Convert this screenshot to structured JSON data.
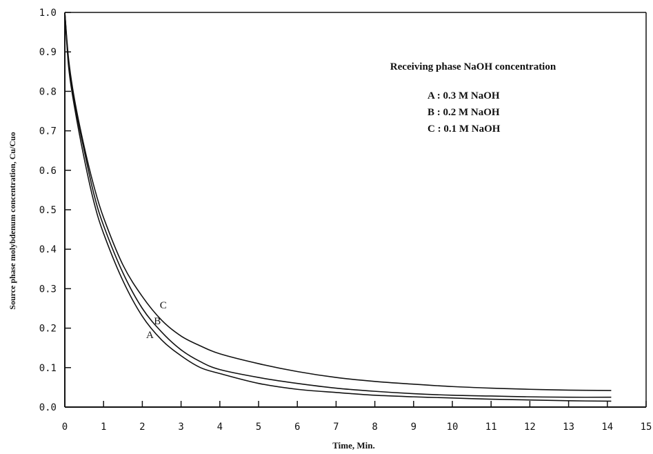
{
  "chart_data": {
    "type": "line",
    "title": "",
    "xlabel": "Time, Min.",
    "ylabel": "Source phase molybdenum concentration,  Cu/Cuo",
    "xlim": [
      0,
      15
    ],
    "ylim": [
      0.0,
      1.0
    ],
    "x_ticks": [
      0,
      1,
      2,
      3,
      4,
      5,
      6,
      7,
      8,
      9,
      10,
      11,
      12,
      13,
      14,
      15
    ],
    "y_ticks": [
      "0.0",
      "0.1",
      "0.2",
      "0.3",
      "0.4",
      "0.5",
      "0.6",
      "0.7",
      "0.8",
      "0.9",
      "1.0"
    ],
    "grid": false,
    "legend": {
      "title": "Receiving phase NaOH concentration",
      "entries": [
        "A : 0.3 M  NaOH",
        "B : 0.2 M NaOH",
        "C : 0.1 M  NaOH"
      ],
      "placement": "top-right"
    },
    "series": [
      {
        "name": "A",
        "label": "A",
        "label_at": [
          2.1,
          0.175
        ],
        "x": [
          0,
          0.1,
          0.25,
          0.5,
          0.75,
          1,
          1.5,
          2,
          2.5,
          3,
          3.5,
          4,
          5,
          6,
          7,
          8,
          9,
          10,
          11,
          12,
          13,
          14.1
        ],
        "y": [
          1.0,
          0.86,
          0.76,
          0.63,
          0.52,
          0.44,
          0.32,
          0.23,
          0.17,
          0.13,
          0.1,
          0.085,
          0.06,
          0.045,
          0.037,
          0.03,
          0.026,
          0.023,
          0.02,
          0.018,
          0.016,
          0.015
        ]
      },
      {
        "name": "B",
        "label": "B",
        "label_at": [
          2.3,
          0.21
        ],
        "x": [
          0,
          0.1,
          0.25,
          0.5,
          0.75,
          1,
          1.5,
          2,
          2.5,
          3,
          3.5,
          4,
          5,
          6,
          7,
          8,
          9,
          10,
          11,
          12,
          13,
          14.1
        ],
        "y": [
          1.0,
          0.87,
          0.77,
          0.65,
          0.54,
          0.46,
          0.34,
          0.25,
          0.19,
          0.145,
          0.115,
          0.095,
          0.075,
          0.06,
          0.048,
          0.04,
          0.034,
          0.03,
          0.028,
          0.026,
          0.025,
          0.025
        ]
      },
      {
        "name": "C",
        "label": "C",
        "label_at": [
          2.45,
          0.25
        ],
        "x": [
          0,
          0.1,
          0.25,
          0.5,
          0.75,
          1,
          1.5,
          2,
          2.5,
          3,
          3.5,
          4,
          5,
          6,
          7,
          8,
          9,
          10,
          11,
          12,
          13,
          14.1
        ],
        "y": [
          1.0,
          0.88,
          0.78,
          0.66,
          0.56,
          0.48,
          0.36,
          0.28,
          0.22,
          0.18,
          0.155,
          0.135,
          0.11,
          0.09,
          0.075,
          0.065,
          0.058,
          0.052,
          0.048,
          0.045,
          0.043,
          0.042
        ]
      }
    ]
  }
}
